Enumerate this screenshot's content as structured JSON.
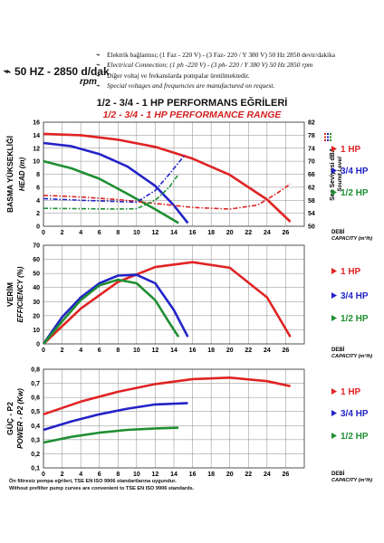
{
  "header": {
    "speed": "50 HZ - 2850 d/dak",
    "rpm": "rpm",
    "notes": [
      "Elektrik bağlantısı; (1 Faz - 220 V) - (3 Faz- 220 / Y 380 V) 50 Hz 2850 devir/dakika",
      "Electrical Connection; (1 ph -220 V) - (3 ph- 220 / Y 380 V) 50 Hz 2850 rpm",
      "Diğer voltaj ve frekanslarda pompalar üretilmektedir.",
      "Special voltages and frequencies are manufactured on request."
    ],
    "title_tr": "1/2 - 3/4 - 1 HP PERFORMANS EĞRİLERİ",
    "title_en": "1/2 - 3/4 - 1 HP PERFORMANCE RANGE"
  },
  "colors": {
    "red": "#e02424",
    "blue": "#2323c8",
    "green": "#1f8f32",
    "grid": "#8a8a8a"
  },
  "legend": [
    "1 HP",
    "3/4 HP",
    "1/2 HP"
  ],
  "footer": [
    "Ön filtresiz pompa eğrileri, TSE EN ISO 9906 standartlarına uygundur.",
    "Without prefilter pump curves are convenient to TSE EN ISO 9906 standards."
  ],
  "chart_data": [
    {
      "type": "line",
      "ylabel_tr": "BASMA YÜKSEKLİĞİ",
      "ylabel_en": "HEAD (m)",
      "y2label_tr": "Ses Seviyesi dBA",
      "y2label_en": "Sound Level",
      "xlabel_tr": "DEBİ",
      "xlabel_en": "CAPACITY (m³/h)",
      "xlim": [
        0,
        28
      ],
      "ylim": [
        0,
        16
      ],
      "y2lim": [
        50,
        82
      ],
      "xticks": [
        0,
        2,
        4,
        6,
        8,
        10,
        12,
        14,
        16,
        18,
        20,
        22,
        24,
        26
      ],
      "yticks": [
        0,
        2,
        4,
        6,
        8,
        10,
        12,
        14,
        16
      ],
      "y2ticks": [
        50,
        54,
        58,
        62,
        66,
        70,
        74,
        78,
        82
      ],
      "series": [
        {
          "name": "1 HP",
          "color": "red",
          "x": [
            0,
            4,
            8,
            12,
            16,
            20,
            24,
            26.5
          ],
          "y": [
            14.2,
            14.0,
            13.3,
            12.2,
            10.4,
            7.9,
            4.1,
            0.7
          ]
        },
        {
          "name": "3/4 HP",
          "color": "blue",
          "x": [
            0,
            3,
            6,
            9,
            12,
            14,
            15.5
          ],
          "y": [
            12.8,
            12.3,
            11.1,
            9.2,
            6.2,
            3.2,
            0.5
          ]
        },
        {
          "name": "1/2 HP",
          "color": "green",
          "x": [
            0,
            3,
            6,
            9,
            12,
            14.5
          ],
          "y": [
            10.0,
            8.9,
            7.3,
            5.0,
            2.6,
            0.5
          ]
        }
      ],
      "sound_series": [
        {
          "name": "1 HP",
          "color": "red",
          "x": [
            0,
            4,
            8,
            12,
            16,
            20,
            23,
            25,
            26.5
          ],
          "y": [
            59.5,
            59,
            58.2,
            57.0,
            55.8,
            55.3,
            56.5,
            60,
            63
          ]
        },
        {
          "name": "3/4 HP",
          "color": "blue",
          "x": [
            0,
            4,
            8,
            10,
            12,
            13.5,
            15.2
          ],
          "y": [
            58.5,
            58,
            57.6,
            57.4,
            61,
            66,
            72
          ]
        },
        {
          "name": "1/2 HP",
          "color": "green",
          "x": [
            0,
            4,
            8,
            10,
            12,
            13.5,
            14.5
          ],
          "y": [
            55.5,
            55.4,
            55.3,
            55.4,
            58,
            62,
            66
          ]
        }
      ]
    },
    {
      "type": "line",
      "ylabel_tr": "VERİM",
      "ylabel_en": "EFFICIENCY (%)",
      "xlabel_tr": "DEBİ",
      "xlabel_en": "CAPACITY (m³/h)",
      "xlim": [
        0,
        28
      ],
      "ylim": [
        0,
        70
      ],
      "xticks": [
        0,
        2,
        4,
        6,
        8,
        10,
        12,
        14,
        16,
        18,
        20,
        22,
        24,
        26
      ],
      "yticks": [
        0,
        10,
        20,
        30,
        40,
        50,
        60,
        70
      ],
      "series": [
        {
          "name": "1 HP",
          "color": "red",
          "x": [
            0,
            4,
            8,
            12,
            16,
            20,
            24,
            26.5
          ],
          "y": [
            0,
            25,
            44,
            54.5,
            58,
            54,
            33,
            5
          ]
        },
        {
          "name": "3/4 HP",
          "color": "blue",
          "x": [
            0,
            2,
            4,
            6,
            8,
            10,
            12,
            14,
            15.5
          ],
          "y": [
            0,
            19,
            33,
            43,
            48.5,
            49,
            43,
            24,
            5
          ]
        },
        {
          "name": "1/2 HP",
          "color": "green",
          "x": [
            0,
            2,
            4,
            6,
            8,
            10,
            12,
            13.5,
            14.5
          ],
          "y": [
            0,
            16,
            31,
            41.5,
            45.5,
            43,
            31,
            15,
            5
          ]
        }
      ]
    },
    {
      "type": "line",
      "ylabel_tr": "GÜÇ - P2",
      "ylabel_en": "POWER - P2 (Kw)",
      "xlabel_tr": "DEBİ",
      "xlabel_en": "CAPACITY (m³/h)",
      "xlim": [
        0,
        28
      ],
      "ylim": [
        0.1,
        0.8
      ],
      "xticks": [
        0,
        2,
        4,
        6,
        8,
        10,
        12,
        14,
        16,
        18,
        20,
        22,
        24,
        26
      ],
      "yticks": [
        0.1,
        0.2,
        0.3,
        0.4,
        0.5,
        0.6,
        0.7,
        0.8
      ],
      "series": [
        {
          "name": "1 HP",
          "color": "red",
          "x": [
            0,
            4,
            8,
            12,
            16,
            20,
            24,
            26.5
          ],
          "y": [
            0.48,
            0.57,
            0.64,
            0.695,
            0.73,
            0.74,
            0.715,
            0.68
          ]
        },
        {
          "name": "3/4 HP",
          "color": "blue",
          "x": [
            0,
            3,
            6,
            9,
            12,
            15.5
          ],
          "y": [
            0.37,
            0.43,
            0.48,
            0.52,
            0.55,
            0.56
          ]
        },
        {
          "name": "1/2 HP",
          "color": "green",
          "x": [
            0,
            3,
            6,
            9,
            12,
            14.5
          ],
          "y": [
            0.28,
            0.32,
            0.35,
            0.37,
            0.38,
            0.385
          ]
        }
      ]
    }
  ]
}
